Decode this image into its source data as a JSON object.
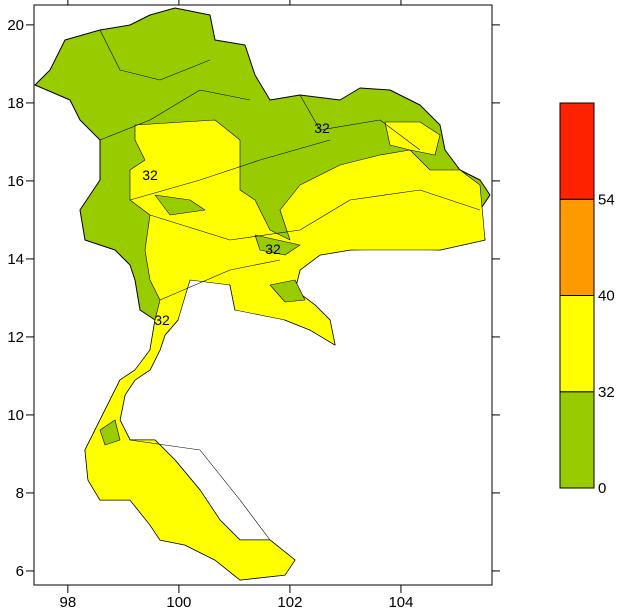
{
  "map": {
    "xlim": [
      97.39,
      105.64
    ],
    "xticks": [
      98,
      100,
      102,
      104
    ],
    "ylim": [
      5.64,
      20.51
    ],
    "yticks": [
      6,
      8,
      10,
      12,
      14,
      16,
      18,
      20
    ],
    "contour_labels": [
      "32",
      "32",
      "32",
      "32"
    ],
    "colorbar": {
      "labels": [
        0,
        32,
        40,
        54
      ],
      "colors": [
        "#99cc00",
        "#ffff00",
        "#ff9900",
        "#ff2200"
      ]
    }
  }
}
